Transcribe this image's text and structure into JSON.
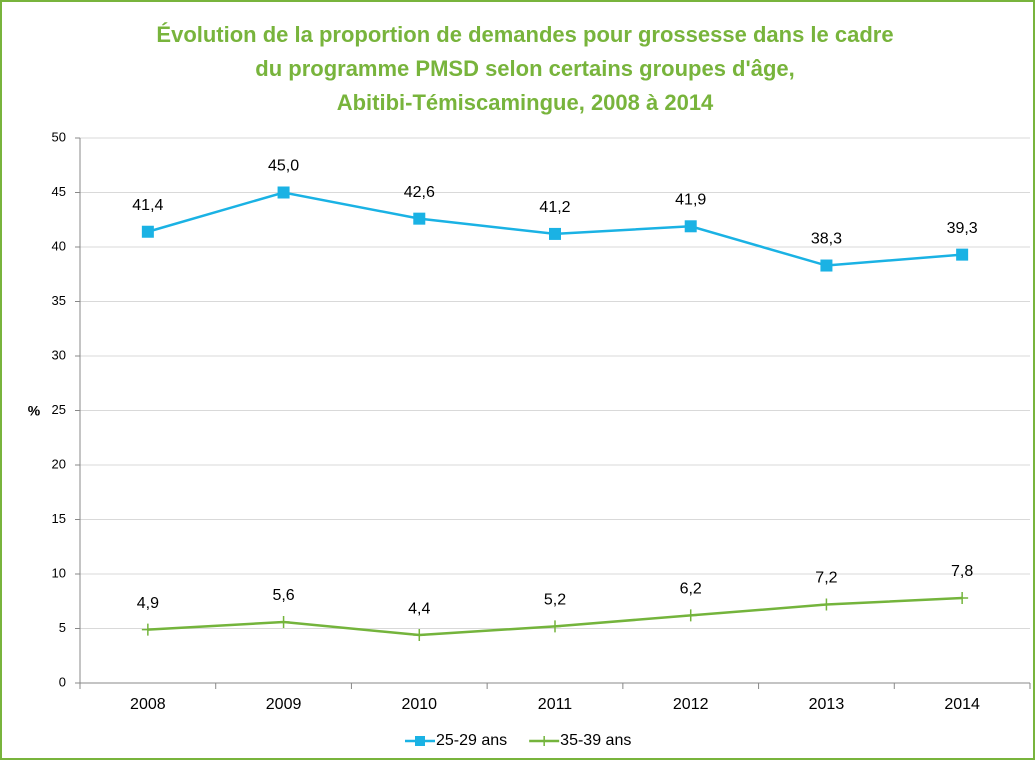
{
  "chart_data": {
    "type": "line",
    "title": [
      "Évolution de la proportion de demandes pour grossesse dans le cadre",
      "du programme PMSD selon certains groupes d'âge,",
      "Abitibi-Témiscamingue, 2008 à 2014"
    ],
    "y_label": "%",
    "categories": [
      "2008",
      "2009",
      "2010",
      "2011",
      "2012",
      "2013",
      "2014"
    ],
    "series": [
      {
        "name": "25-29 ans",
        "color": "#1ab2e4",
        "marker": "square",
        "values": [
          41.4,
          45.0,
          42.6,
          41.2,
          41.9,
          38.3,
          39.3
        ],
        "value_labels": [
          "41,4",
          "45,0",
          "42,6",
          "41,2",
          "41,9",
          "38,3",
          "39,3"
        ]
      },
      {
        "name": "35-39 ans",
        "color": "#74b43c",
        "marker": "plus",
        "values": [
          4.9,
          5.6,
          4.4,
          5.2,
          6.2,
          7.2,
          7.8
        ],
        "value_labels": [
          "4,9",
          "5,6",
          "4,4",
          "5,2",
          "6,2",
          "7,2",
          "7,8"
        ]
      }
    ],
    "ylim": [
      0,
      50
    ],
    "yticks": [
      0,
      5,
      10,
      15,
      20,
      25,
      30,
      35,
      40,
      45,
      50
    ],
    "grid": true,
    "legend": "bottom"
  }
}
